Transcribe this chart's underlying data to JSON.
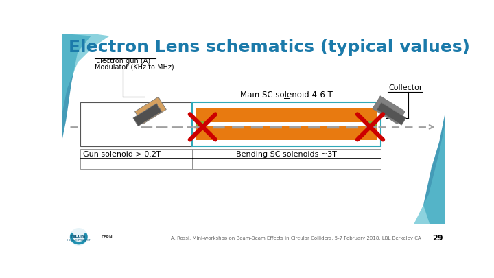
{
  "title": "Electron Lens schematics (typical values)",
  "title_color": "#1b7aaa",
  "title_fontsize": 18,
  "bg_color": "#ffffff",
  "footer_text": "A. Rossi, Mini-workshop on Beam-Beam Effects in Circular Colliders, 5-7 February 2018, LBL Berkeley CA",
  "page_num": "29",
  "label_gun": "Electron gun (A)",
  "label_mod": "Modulator (KHz to MHz)",
  "label_collector": "Collector",
  "label_main_sol": "Main SC solenoid 4-6 T",
  "label_gun_sol": "Gun solenoid > 0.2T",
  "label_bending": "Bending SC solenoids ~3T",
  "beam_color": "#a0a0a0",
  "orange_color": "#e87a10",
  "green_color": "#88b030",
  "cyan_border": "#30a8b8",
  "red_x_color": "#cc0000",
  "gun_magnet_orange": "#d4a060",
  "gun_magnet_gray": "#505050",
  "collector_magnet_gray": "#808080",
  "cyan_stripe": "#3090b0"
}
